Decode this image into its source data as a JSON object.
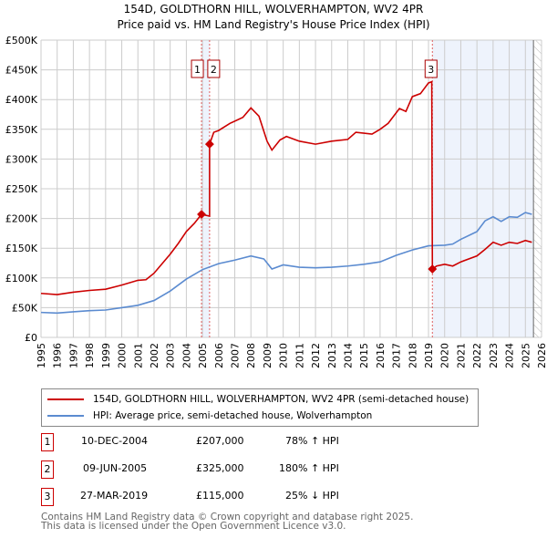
{
  "chart_data": {
    "type": "line",
    "title": "154D, GOLDTHORN HILL, WOLVERHAMPTON, WV2 4PR",
    "subtitle": "Price paid vs. HM Land Registry's House Price Index (HPI)",
    "xlim": [
      1995,
      2026
    ],
    "ylim": [
      0,
      500000
    ],
    "x_ticks": [
      "1995",
      "1996",
      "1997",
      "1998",
      "1999",
      "2000",
      "2001",
      "2002",
      "2003",
      "2004",
      "2005",
      "2006",
      "2007",
      "2008",
      "2009",
      "2010",
      "2011",
      "2012",
      "2013",
      "2014",
      "2015",
      "2016",
      "2017",
      "2018",
      "2019",
      "2020",
      "2021",
      "2022",
      "2023",
      "2024",
      "2025",
      "2026"
    ],
    "y_ticks": [
      {
        "v": 0,
        "l": "£0"
      },
      {
        "v": 50000,
        "l": "£50K"
      },
      {
        "v": 100000,
        "l": "£100K"
      },
      {
        "v": 150000,
        "l": "£150K"
      },
      {
        "v": 200000,
        "l": "£200K"
      },
      {
        "v": 250000,
        "l": "£250K"
      },
      {
        "v": 300000,
        "l": "£300K"
      },
      {
        "v": 350000,
        "l": "£350K"
      },
      {
        "v": 400000,
        "l": "£400K"
      },
      {
        "v": 450000,
        "l": "£450K"
      },
      {
        "v": 500000,
        "l": "£500K"
      }
    ],
    "grid": true,
    "series": [
      {
        "name": "154D, GOLDTHORN HILL, WOLVERHAMPTON, WV2 4PR (semi-detached house)",
        "color": "#cc0000",
        "x": [
          1995,
          1996,
          1997,
          1998,
          1999,
          2000,
          2001,
          2001.5,
          2002,
          2003,
          2003.5,
          2004,
          2004.5,
          2004.94,
          2005.44,
          2005.44,
          2005.7,
          2006,
          2006.7,
          2007.5,
          2008,
          2008.5,
          2009,
          2009.3,
          2009.8,
          2010.2,
          2011,
          2012,
          2013,
          2014,
          2014.5,
          2015.5,
          2016,
          2016.5,
          2017.2,
          2017.6,
          2018,
          2018.5,
          2019,
          2019.2,
          2019.24,
          2019.5,
          2020,
          2020.5,
          2021,
          2022,
          2022.5,
          2023,
          2023.5,
          2024,
          2024.5,
          2025,
          2025.4
        ],
        "y": [
          74000,
          72000,
          76000,
          79000,
          81000,
          88000,
          96000,
          97000,
          108000,
          140000,
          158000,
          178000,
          192000,
          207000,
          204000,
          325000,
          345000,
          348000,
          360000,
          370000,
          386000,
          372000,
          330000,
          315000,
          332000,
          338000,
          330000,
          325000,
          330000,
          333000,
          345000,
          342000,
          350000,
          360000,
          385000,
          380000,
          405000,
          410000,
          428000,
          430000,
          115000,
          120000,
          123000,
          120000,
          127000,
          137000,
          148000,
          160000,
          155000,
          160000,
          158000,
          163000,
          160000
        ]
      },
      {
        "name": "HPI: Average price, semi-detached house, Wolverhampton",
        "color": "#5b8bd0",
        "x": [
          1995,
          1996,
          1997,
          1998,
          1999,
          2000,
          2001,
          2002,
          2003,
          2004,
          2005,
          2006,
          2007,
          2008,
          2008.8,
          2009.3,
          2010,
          2011,
          2012,
          2013,
          2014,
          2015,
          2016,
          2017,
          2018,
          2019,
          2020,
          2020.5,
          2021,
          2022,
          2022.5,
          2023,
          2023.5,
          2024,
          2024.5,
          2025,
          2025.4
        ],
        "y": [
          42000,
          41000,
          43000,
          45000,
          46000,
          50000,
          54000,
          62000,
          78000,
          98000,
          114000,
          124000,
          130000,
          137000,
          132000,
          115000,
          122000,
          118000,
          117000,
          118000,
          120000,
          123000,
          127000,
          138000,
          147000,
          154000,
          155000,
          157000,
          165000,
          178000,
          196000,
          203000,
          195000,
          203000,
          202000,
          210000,
          207000
        ]
      }
    ],
    "sales": [
      {
        "label": "1",
        "x": 2004.94,
        "y": 207000,
        "date": "10-DEC-2004",
        "price": "£207,000",
        "hpi": "78% ↑ HPI"
      },
      {
        "label": "2",
        "x": 2005.44,
        "y": 325000,
        "date": "09-JUN-2005",
        "price": "£325,000",
        "hpi": "180% ↑ HPI"
      },
      {
        "label": "3",
        "x": 2019.24,
        "y": 115000,
        "date": "27-MAR-2019",
        "price": "£115,000",
        "hpi": "25% ↓ HPI"
      }
    ],
    "data_end": 2025.5,
    "legend_placement": "below"
  },
  "footer": {
    "line1": "Contains HM Land Registry data © Crown copyright and database right 2025.",
    "line2": "This data is licensed under the Open Government Licence v3.0."
  }
}
